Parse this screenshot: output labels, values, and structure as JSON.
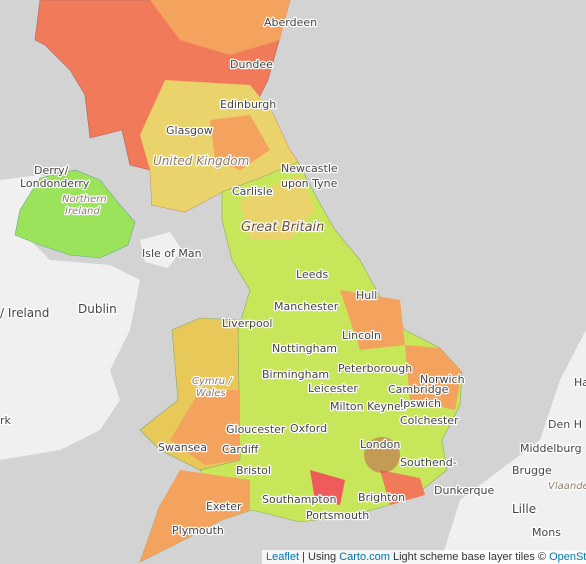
{
  "labels": [
    "Aberdeen",
    "Dundee",
    "Edinburgh",
    "Glasgow",
    "United Kingdom",
    "Newcastle",
    "upon Tyne",
    "Carlisle",
    "Derry/",
    "Londonderry",
    "Northern",
    "Ireland",
    "Great Britain",
    "Isle of Man",
    "Dublin",
    "/ Ireland",
    "Leeds",
    "Hull",
    "Liverpool",
    "Manchester",
    "Lincoln",
    "Nottingham",
    "Peterborough",
    "Norwich",
    "Birmingham",
    "Cymru /",
    "Wales",
    "Leicester",
    "Swansea",
    "Cardiff",
    "Gloucester",
    "Oxford",
    "Milton Keynes",
    "Cambridge",
    "Ipswich",
    "Colchester",
    "London",
    "Southend-",
    "Bristol",
    "Exeter",
    "Plymouth",
    "Southampton",
    "Portsmouth",
    "Brighton",
    "Dunkerque",
    "Brugge",
    "Middelburg",
    "Lille",
    "Mons",
    "Den H",
    "Ha",
    "rk",
    "Vlaande"
  ],
  "attribution": {
    "leaflet": "Leaflet",
    "using": " | Using ",
    "carto": "Carto.com",
    "rest": " Light scheme base layer tiles © ",
    "osm": "OpenStreetMap"
  }
}
